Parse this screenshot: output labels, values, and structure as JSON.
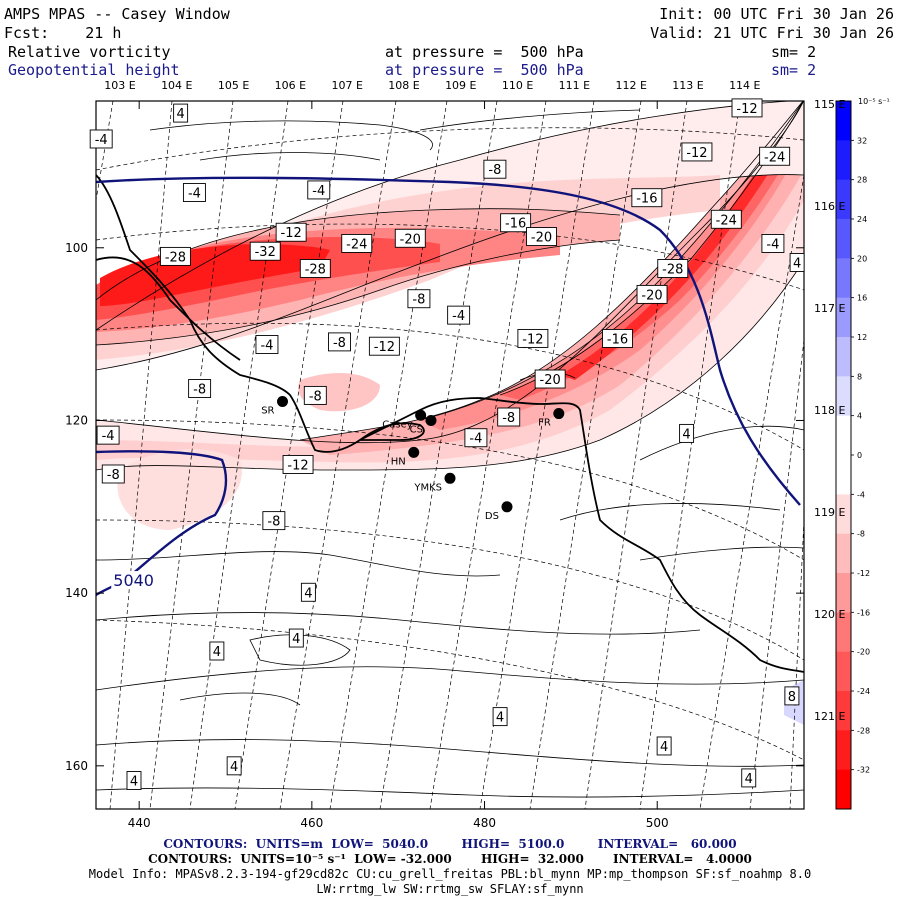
{
  "header": {
    "title": "AMPS MPAS -- Casey Window",
    "init": "Init: 00 UTC Fri 30 Jan 26",
    "forecast": "Fcst:    21 h",
    "valid": "Valid: 21 UTC Fri 30 Jan 26",
    "field1_name": "Relative vorticity",
    "field1_level": "at pressure =  500 hPa",
    "field1_sm": "sm= 2",
    "field2_name": "Geopotential height",
    "field2_level": "at pressure =  500 hPa",
    "field2_sm": "sm= 2"
  },
  "chart_data": {
    "type": "heatmap",
    "title": "AMPS MPAS -- Casey Window: Relative vorticity and Geopotential height at 500 hPa",
    "x_ticks": [
      "440",
      "460",
      "480",
      "500"
    ],
    "y_ticks": [
      "100",
      "120",
      "140",
      "160"
    ],
    "top_lon_labels": [
      "103 E",
      "104 E",
      "105 E",
      "106 E",
      "107 E",
      "108 E",
      "109 E",
      "110 E",
      "111 E",
      "112 E",
      "113 E",
      "114 E"
    ],
    "right_lon_labels": [
      "115 E",
      "116 E",
      "117 E",
      "118 E",
      "119 E",
      "120 E",
      "121 E"
    ],
    "colorbar": {
      "unit": "10⁻⁵ s⁻¹",
      "levels": [
        32,
        28,
        24,
        20,
        16,
        12,
        8,
        4,
        0,
        -4,
        -8,
        -12,
        -16,
        -20,
        -24,
        -28,
        -32
      ],
      "labels": [
        "32",
        "28",
        "24",
        "20",
        "16",
        "12",
        "8",
        "4",
        "0",
        "-4",
        "-8",
        "-12",
        "-16",
        "-20",
        "-24",
        "-28",
        "-32"
      ],
      "colors": [
        "#0000ff",
        "#1c1cff",
        "#3a3aff",
        "#5858ff",
        "#7878ff",
        "#9a9aff",
        "#bcbcff",
        "#dcdcff",
        "#ffffff",
        "#ffffff",
        "#ffdcdc",
        "#ffbcbc",
        "#ff9a9a",
        "#ff7878",
        "#ff5858",
        "#ff3a3a",
        "#ff1c1c",
        "#ff0000"
      ]
    },
    "vorticity_labels": [
      {
        "text": "-4",
        "x": 435.6,
        "y": 87.4
      },
      {
        "text": "4",
        "x": 444.8,
        "y": 84.4
      },
      {
        "text": "-4",
        "x": 446.4,
        "y": 93.6
      },
      {
        "text": "-4",
        "x": 460.8,
        "y": 93.3
      },
      {
        "text": "-8",
        "x": 481.2,
        "y": 90.9
      },
      {
        "text": "-12",
        "x": 510.4,
        "y": 83.8
      },
      {
        "text": "-12",
        "x": 504.6,
        "y": 88.9
      },
      {
        "text": "-24",
        "x": 513.6,
        "y": 89.4
      },
      {
        "text": "-16",
        "x": 498.8,
        "y": 94.2
      },
      {
        "text": "-16",
        "x": 483.6,
        "y": 97.1
      },
      {
        "text": "-24",
        "x": 508.0,
        "y": 96.7
      },
      {
        "text": "-12",
        "x": 457.6,
        "y": 98.2
      },
      {
        "text": "-24",
        "x": 465.2,
        "y": 99.5
      },
      {
        "text": "-20",
        "x": 471.4,
        "y": 98.9
      },
      {
        "text": "-20",
        "x": 486.6,
        "y": 98.7
      },
      {
        "text": "-4",
        "x": 513.4,
        "y": 99.5
      },
      {
        "text": "-28",
        "x": 444.2,
        "y": 101.0
      },
      {
        "text": "-32",
        "x": 454.6,
        "y": 100.4
      },
      {
        "text": "-28",
        "x": 460.4,
        "y": 102.4
      },
      {
        "text": "4",
        "x": 516.2,
        "y": 101.7
      },
      {
        "text": "-28",
        "x": 501.8,
        "y": 102.4
      },
      {
        "text": "-8",
        "x": 472.4,
        "y": 105.9
      },
      {
        "text": "-20",
        "x": 499.4,
        "y": 105.4
      },
      {
        "text": "-4",
        "x": 477.0,
        "y": 107.8
      },
      {
        "text": "-4",
        "x": 454.8,
        "y": 111.2
      },
      {
        "text": "-8",
        "x": 463.2,
        "y": 110.9
      },
      {
        "text": "-12",
        "x": 468.4,
        "y": 111.4
      },
      {
        "text": "-12",
        "x": 485.6,
        "y": 110.5
      },
      {
        "text": "-16",
        "x": 495.4,
        "y": 110.5
      },
      {
        "text": "-8",
        "x": 447.0,
        "y": 116.3
      },
      {
        "text": "-20",
        "x": 487.6,
        "y": 115.2
      },
      {
        "text": "-8",
        "x": 460.4,
        "y": 117.1
      },
      {
        "text": "-8",
        "x": 482.8,
        "y": 119.6
      },
      {
        "text": "4",
        "x": 503.4,
        "y": 121.5
      },
      {
        "text": "-4",
        "x": 436.4,
        "y": 121.7
      },
      {
        "text": "-4",
        "x": 479.0,
        "y": 122.0
      },
      {
        "text": "-12",
        "x": 458.4,
        "y": 125.1
      },
      {
        "text": "-8",
        "x": 437.0,
        "y": 126.2
      },
      {
        "text": "-8",
        "x": 455.6,
        "y": 131.6
      },
      {
        "text": "4",
        "x": 459.6,
        "y": 139.9
      },
      {
        "text": "4",
        "x": 449.0,
        "y": 146.7
      },
      {
        "text": "4",
        "x": 458.2,
        "y": 145.2
      },
      {
        "text": "8",
        "x": 515.6,
        "y": 151.9
      },
      {
        "text": "4",
        "x": 481.8,
        "y": 154.3
      },
      {
        "text": "4",
        "x": 500.8,
        "y": 157.7
      },
      {
        "text": "4",
        "x": 451.0,
        "y": 160.0
      },
      {
        "text": "4",
        "x": 439.4,
        "y": 161.7
      },
      {
        "text": "4",
        "x": 510.6,
        "y": 161.4
      }
    ],
    "height_labels": [
      {
        "text": "5040",
        "x": 437.0,
        "y": 138.6
      }
    ],
    "stations": [
      {
        "name": "SR",
        "x": 456.6,
        "y": 117.8
      },
      {
        "name": "Casey",
        "x": 472.6,
        "y": 119.4
      },
      {
        "name": "CS",
        "x": 473.8,
        "y": 120.0
      },
      {
        "name": "HN",
        "x": 471.8,
        "y": 123.7
      },
      {
        "name": "YMKS",
        "x": 476.0,
        "y": 126.7
      },
      {
        "name": "DS",
        "x": 482.6,
        "y": 130.0
      },
      {
        "name": "FR",
        "x": 488.6,
        "y": 119.2
      }
    ]
  },
  "footer": {
    "contours1": "CONTOURS:  UNITS=m  LOW=  5040.0        HIGH=  5100.0        INTERVAL=   60.000",
    "contours2": "CONTOURS:  UNITS=10⁻⁵ s⁻¹  LOW= -32.000       HIGH=  32.000       INTERVAL=   4.0000",
    "model_info": "Model Info: MPASv8.2.3-194-gf29cd82c CU:cu_grell_freitas PBL:bl_mynn MP:mp_thompson SF:sf_noahmp 8.0",
    "model_info2": "LW:rrtmg_lw SW:rrtmg_sw SFLAY:sf_mynn"
  }
}
